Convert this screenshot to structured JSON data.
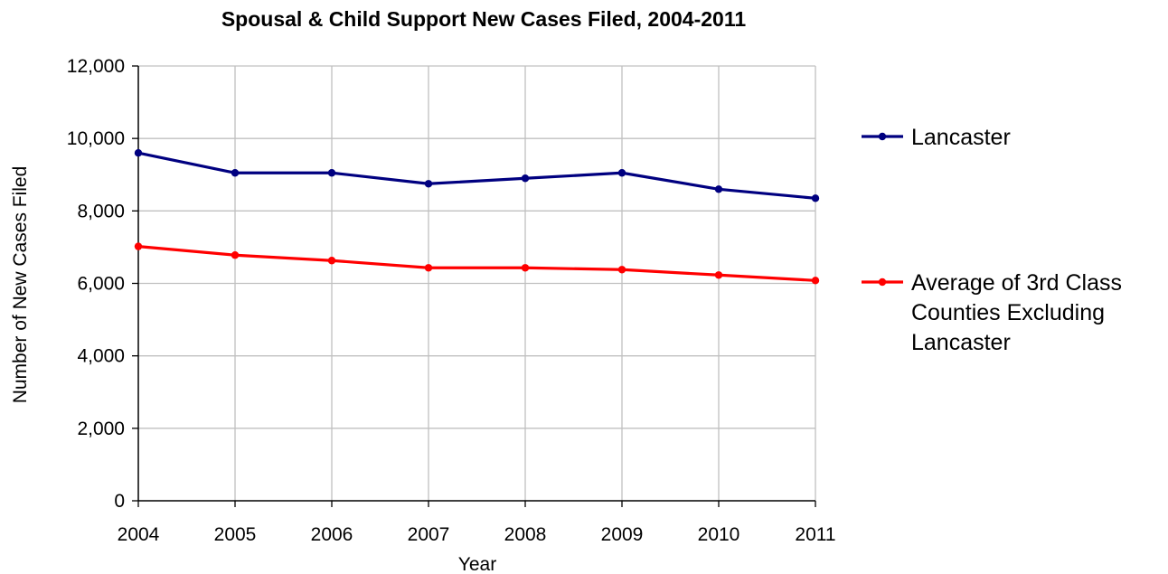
{
  "chart_data": {
    "type": "line",
    "title": "Spousal & Child Support New Cases Filed, 2004-2011",
    "xlabel": "Year",
    "ylabel": "Number of New Cases Filed",
    "x": [
      "2004",
      "2005",
      "2006",
      "2007",
      "2008",
      "2009",
      "2010",
      "2011"
    ],
    "ylim": [
      0,
      12000
    ],
    "yticks": [
      0,
      2000,
      4000,
      6000,
      8000,
      10000,
      12000
    ],
    "ytick_labels": [
      "0",
      "2,000",
      "4,000",
      "6,000",
      "8,000",
      "10,000",
      "12,000"
    ],
    "grid": true,
    "legend_position": "right",
    "series": [
      {
        "name": "Lancaster",
        "color": "#000080",
        "values": [
          9600,
          9050,
          9050,
          8750,
          8900,
          9050,
          8600,
          8350
        ]
      },
      {
        "name": "Average of 3rd Class Counties Excluding Lancaster",
        "legend_lines": [
          "Average of 3rd Class",
          "Counties Excluding",
          "Lancaster"
        ],
        "color": "#ff0000",
        "values": [
          7020,
          6780,
          6630,
          6430,
          6430,
          6380,
          6230,
          6080
        ]
      }
    ]
  }
}
